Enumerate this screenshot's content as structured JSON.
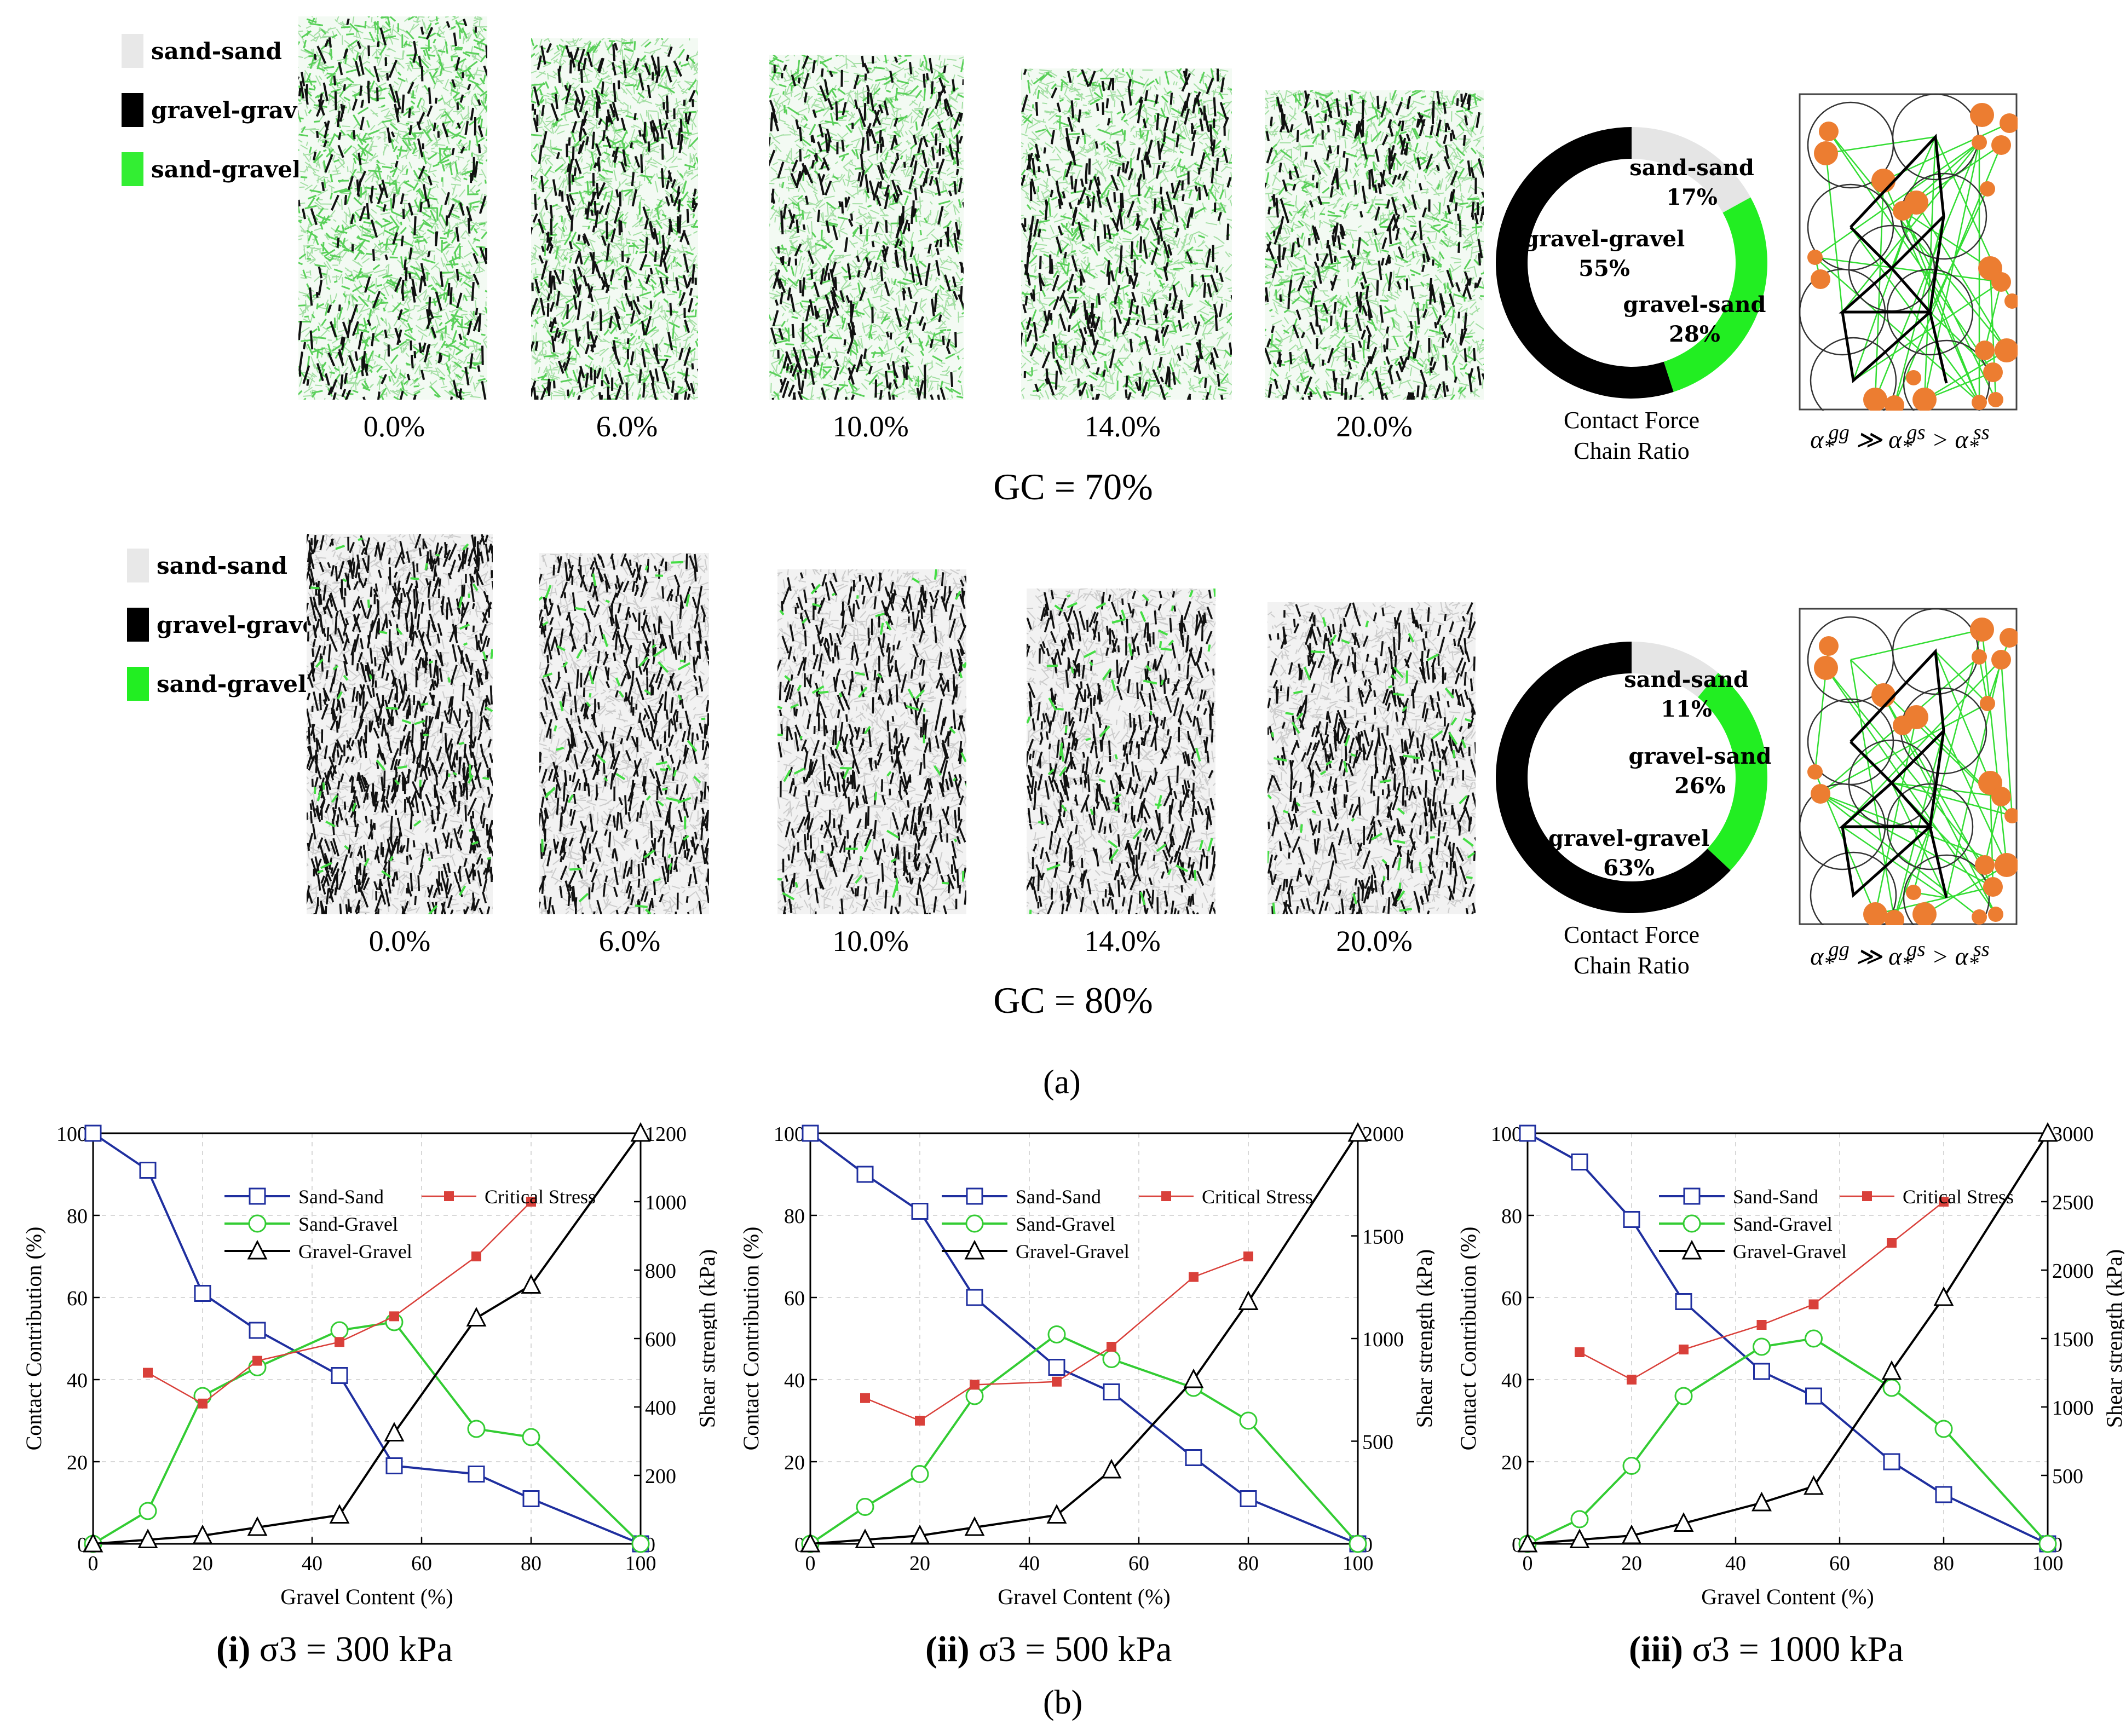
{
  "panel_a": {
    "label": "(a)",
    "rows": [
      {
        "gc_label": "GC = 70%",
        "legend": [
          {
            "label": "sand-sand",
            "color": "#e8e8e8"
          },
          {
            "label": "gravel-gravel",
            "color": "#000000"
          },
          {
            "label": "sand-gravel",
            "color": "#33ee33"
          }
        ],
        "specimens": [
          "0.0%",
          "6.0%",
          "10.0%",
          "14.0%",
          "20.0%"
        ],
        "ring": {
          "segments": [
            {
              "name": "sand-sand",
              "label": "sand-sand",
              "pct_label": "17%",
              "value": 17,
              "color": "#e5e5e5"
            },
            {
              "name": "gravel-sand",
              "label": "gravel-sand",
              "pct_label": "28%",
              "value": 28,
              "color": "#22ee22"
            },
            {
              "name": "gravel-gravel",
              "label": "gravel-gravel",
              "pct_label": "55%",
              "value": 55,
              "color": "#000000"
            }
          ],
          "caption_line1": "Contact Force",
          "caption_line2": "Chain Ratio"
        },
        "formula": "α*gg ≫ α*gs > α*ss"
      },
      {
        "gc_label": "GC = 80%",
        "legend": [
          {
            "label": "sand-sand",
            "color": "#e8e8e8"
          },
          {
            "label": "gravel-gravel",
            "color": "#000000"
          },
          {
            "label": "sand-gravel",
            "color": "#22ee22"
          }
        ],
        "specimens": [
          "0.0%",
          "6.0%",
          "10.0%",
          "14.0%",
          "20.0%"
        ],
        "ring": {
          "segments": [
            {
              "name": "sand-sand",
              "label": "sand-sand",
              "pct_label": "11%",
              "value": 11,
              "color": "#e5e5e5"
            },
            {
              "name": "gravel-sand",
              "label": "gravel-sand",
              "pct_label": "26%",
              "value": 26,
              "color": "#22ee22"
            },
            {
              "name": "gravel-gravel",
              "label": "gravel-gravel",
              "pct_label": "63%",
              "value": 63,
              "color": "#000000"
            }
          ],
          "caption_line1": "Contact Force",
          "caption_line2": "Chain Ratio"
        },
        "formula": "α*gg ≫ α*gs > α*ss"
      }
    ]
  },
  "panel_b": {
    "label": "(b)"
  },
  "chart_data": [
    {
      "type": "line",
      "subtitle_num": "(i)",
      "subtitle_rest": "σ3 = 300 kPa",
      "xlabel": "Gravel Content (%)",
      "ylabel": "Contact Contribution (%)",
      "y2label": "Shear strength (kPa)",
      "xlim": [
        0,
        100
      ],
      "ylim": [
        0,
        100
      ],
      "y2lim": [
        0,
        1200
      ],
      "xticks": [
        0,
        20,
        40,
        60,
        80,
        100
      ],
      "yticks": [
        0,
        20,
        40,
        60,
        80,
        100
      ],
      "y2ticks": [
        0,
        200,
        400,
        600,
        800,
        1000,
        1200
      ],
      "series": [
        {
          "name": "Sand-Sand",
          "axis": "left",
          "color": "#1f2f9f",
          "marker": "square",
          "x": [
            0,
            10,
            20,
            30,
            45,
            55,
            70,
            80,
            100
          ],
          "y": [
            100,
            91,
            61,
            52,
            41,
            19,
            17,
            11,
            0
          ]
        },
        {
          "name": "Sand-Gravel",
          "axis": "left",
          "color": "#33cc33",
          "marker": "circle",
          "x": [
            0,
            10,
            20,
            30,
            45,
            55,
            70,
            80,
            100
          ],
          "y": [
            0,
            8,
            36,
            43,
            52,
            54,
            28,
            26,
            0
          ]
        },
        {
          "name": "Gravel-Gravel",
          "axis": "left",
          "color": "#000000",
          "marker": "triangle",
          "x": [
            0,
            10,
            20,
            30,
            45,
            55,
            70,
            80,
            100
          ],
          "y": [
            0,
            1,
            2,
            4,
            7,
            27,
            55,
            63,
            100
          ]
        },
        {
          "name": "Critical Stress",
          "axis": "right",
          "color": "#d9403a",
          "marker": "filled-square",
          "x": [
            10,
            20,
            30,
            45,
            55,
            70,
            80
          ],
          "y": [
            500,
            410,
            535,
            590,
            665,
            840,
            1000
          ]
        }
      ]
    },
    {
      "type": "line",
      "subtitle_num": "(ii)",
      "subtitle_rest": "σ3 = 500 kPa",
      "xlabel": "Gravel Content (%)",
      "ylabel": "Contact Contribution (%)",
      "y2label": "Shear strength (kPa)",
      "xlim": [
        0,
        100
      ],
      "ylim": [
        0,
        100
      ],
      "y2lim": [
        0,
        2000
      ],
      "xticks": [
        0,
        20,
        40,
        60,
        80,
        100
      ],
      "yticks": [
        0,
        20,
        40,
        60,
        80,
        100
      ],
      "y2ticks": [
        0,
        500,
        1000,
        1500,
        2000
      ],
      "series": [
        {
          "name": "Sand-Sand",
          "axis": "left",
          "color": "#1f2f9f",
          "marker": "square",
          "x": [
            0,
            10,
            20,
            30,
            45,
            55,
            70,
            80,
            100
          ],
          "y": [
            100,
            90,
            81,
            60,
            43,
            37,
            21,
            11,
            0
          ]
        },
        {
          "name": "Sand-Gravel",
          "axis": "left",
          "color": "#33cc33",
          "marker": "circle",
          "x": [
            0,
            10,
            20,
            30,
            45,
            55,
            70,
            80,
            100
          ],
          "y": [
            0,
            9,
            17,
            36,
            51,
            45,
            38,
            30,
            0
          ]
        },
        {
          "name": "Gravel-Gravel",
          "axis": "left",
          "color": "#000000",
          "marker": "triangle",
          "x": [
            0,
            10,
            20,
            30,
            45,
            55,
            70,
            80,
            100
          ],
          "y": [
            0,
            1,
            2,
            4,
            7,
            18,
            40,
            59,
            100
          ]
        },
        {
          "name": "Critical Stress",
          "axis": "right",
          "color": "#d9403a",
          "marker": "filled-square",
          "x": [
            10,
            20,
            30,
            45,
            55,
            70,
            80
          ],
          "y": [
            710,
            600,
            775,
            790,
            960,
            1300,
            1400
          ]
        }
      ]
    },
    {
      "type": "line",
      "subtitle_num": "(iii)",
      "subtitle_rest": "σ3 = 1000 kPa",
      "xlabel": "Gravel Content (%)",
      "ylabel": "Contact Contribution (%)",
      "y2label": "Shear strength (kPa)",
      "xlim": [
        0,
        100
      ],
      "ylim": [
        0,
        100
      ],
      "y2lim": [
        0,
        3000
      ],
      "xticks": [
        0,
        20,
        40,
        60,
        80,
        100
      ],
      "yticks": [
        0,
        20,
        40,
        60,
        80,
        100
      ],
      "y2ticks": [
        0,
        500,
        1000,
        1500,
        2000,
        2500,
        3000
      ],
      "series": [
        {
          "name": "Sand-Sand",
          "axis": "left",
          "color": "#1f2f9f",
          "marker": "square",
          "x": [
            0,
            10,
            20,
            30,
            45,
            55,
            70,
            80,
            100
          ],
          "y": [
            100,
            93,
            79,
            59,
            42,
            36,
            20,
            12,
            0
          ]
        },
        {
          "name": "Sand-Gravel",
          "axis": "left",
          "color": "#33cc33",
          "marker": "circle",
          "x": [
            0,
            10,
            20,
            30,
            45,
            55,
            70,
            80,
            100
          ],
          "y": [
            0,
            6,
            19,
            36,
            48,
            50,
            38,
            28,
            0
          ]
        },
        {
          "name": "Gravel-Gravel",
          "axis": "left",
          "color": "#000000",
          "marker": "triangle",
          "x": [
            0,
            10,
            20,
            30,
            45,
            55,
            70,
            80,
            100
          ],
          "y": [
            0,
            1,
            2,
            5,
            10,
            14,
            42,
            60,
            100
          ]
        },
        {
          "name": "Critical Stress",
          "axis": "right",
          "color": "#d9403a",
          "marker": "filled-square",
          "x": [
            10,
            20,
            30,
            45,
            55,
            70,
            80
          ],
          "y": [
            1400,
            1200,
            1420,
            1600,
            1750,
            2200,
            2500
          ]
        }
      ]
    }
  ]
}
